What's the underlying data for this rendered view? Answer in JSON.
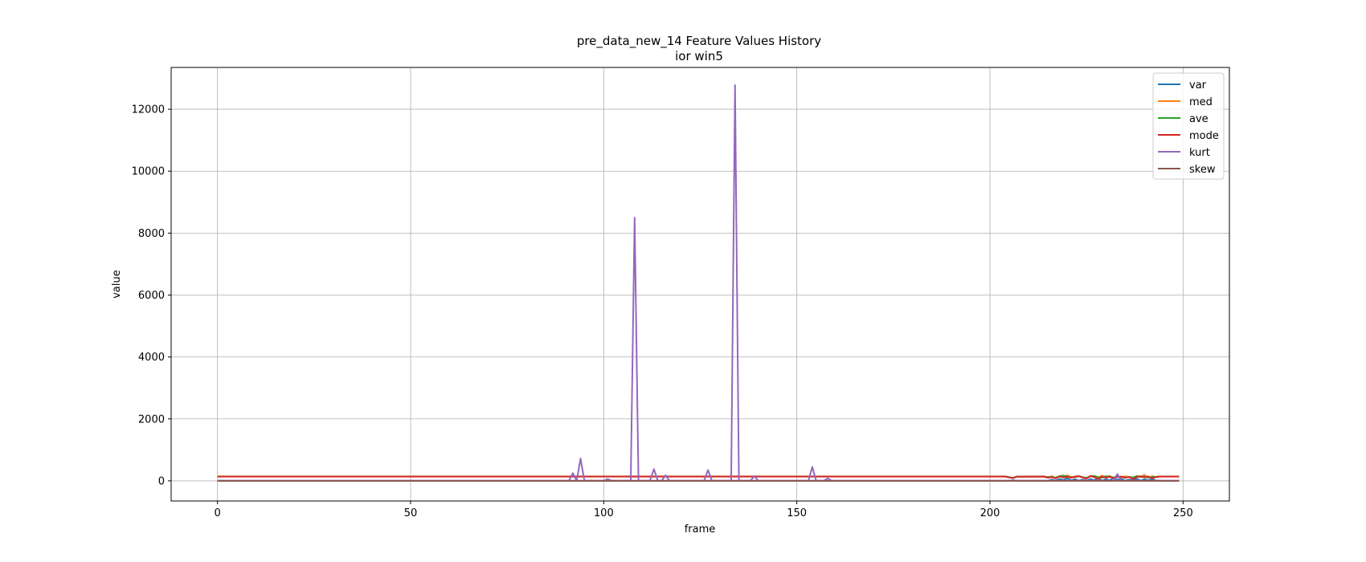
{
  "chart_data": {
    "type": "line",
    "title": "pre_data_new_14 Feature Values History",
    "subtitle": "ior win5",
    "xlabel": "frame",
    "ylabel": "value",
    "xlim": [
      -12,
      262
    ],
    "ylim": [
      -650,
      13350
    ],
    "xticks": [
      0,
      50,
      100,
      150,
      200,
      250
    ],
    "yticks": [
      0,
      2000,
      4000,
      6000,
      8000,
      10000,
      12000
    ],
    "grid": true,
    "legend_position": "top-right",
    "series": [
      {
        "name": "var",
        "color": "#1f77b4",
        "baseline": 2,
        "points": [
          [
            0,
            2
          ],
          [
            205,
            2
          ],
          [
            206,
            20
          ],
          [
            207,
            2
          ],
          [
            215,
            2
          ],
          [
            216,
            40
          ],
          [
            217,
            10
          ],
          [
            218,
            60
          ],
          [
            219,
            30
          ],
          [
            220,
            80
          ],
          [
            221,
            20
          ],
          [
            222,
            50
          ],
          [
            223,
            10
          ],
          [
            224,
            40
          ],
          [
            225,
            5
          ],
          [
            226,
            60
          ],
          [
            227,
            20
          ],
          [
            228,
            80
          ],
          [
            229,
            10
          ],
          [
            230,
            50
          ],
          [
            231,
            20
          ],
          [
            232,
            90
          ],
          [
            233,
            30
          ],
          [
            234,
            60
          ],
          [
            235,
            10
          ],
          [
            236,
            40
          ],
          [
            237,
            20
          ],
          [
            238,
            70
          ],
          [
            239,
            10
          ],
          [
            240,
            50
          ],
          [
            241,
            20
          ],
          [
            242,
            60
          ],
          [
            243,
            10
          ],
          [
            244,
            2
          ],
          [
            249,
            2
          ]
        ]
      },
      {
        "name": "med",
        "color": "#ff7f0e",
        "baseline": 145,
        "points": [
          [
            0,
            145
          ],
          [
            204,
            145
          ],
          [
            205,
            120
          ],
          [
            206,
            100
          ],
          [
            207,
            140
          ],
          [
            214,
            145
          ],
          [
            215,
            110
          ],
          [
            216,
            150
          ],
          [
            217,
            90
          ],
          [
            218,
            160
          ],
          [
            219,
            120
          ],
          [
            220,
            180
          ],
          [
            221,
            130
          ],
          [
            222,
            110
          ],
          [
            223,
            150
          ],
          [
            224,
            120
          ],
          [
            225,
            90
          ],
          [
            226,
            160
          ],
          [
            227,
            130
          ],
          [
            228,
            100
          ],
          [
            229,
            170
          ],
          [
            230,
            120
          ],
          [
            231,
            160
          ],
          [
            232,
            90
          ],
          [
            233,
            140
          ],
          [
            234,
            110
          ],
          [
            235,
            150
          ],
          [
            236,
            120
          ],
          [
            237,
            80
          ],
          [
            238,
            160
          ],
          [
            239,
            130
          ],
          [
            240,
            190
          ],
          [
            241,
            110
          ],
          [
            242,
            150
          ],
          [
            243,
            120
          ],
          [
            244,
            145
          ],
          [
            249,
            145
          ]
        ]
      },
      {
        "name": "ave",
        "color": "#2ca02c",
        "baseline": 140,
        "points": [
          [
            0,
            140
          ],
          [
            204,
            140
          ],
          [
            205,
            115
          ],
          [
            206,
            100
          ],
          [
            207,
            135
          ],
          [
            214,
            140
          ],
          [
            215,
            120
          ],
          [
            216,
            130
          ],
          [
            217,
            100
          ],
          [
            218,
            150
          ],
          [
            219,
            170
          ],
          [
            220,
            140
          ],
          [
            221,
            110
          ],
          [
            222,
            130
          ],
          [
            223,
            150
          ],
          [
            224,
            120
          ],
          [
            225,
            100
          ],
          [
            226,
            140
          ],
          [
            227,
            160
          ],
          [
            228,
            120
          ],
          [
            229,
            100
          ],
          [
            230,
            150
          ],
          [
            231,
            130
          ],
          [
            232,
            110
          ],
          [
            233,
            140
          ],
          [
            234,
            120
          ],
          [
            235,
            100
          ],
          [
            236,
            130
          ],
          [
            237,
            110
          ],
          [
            238,
            150
          ],
          [
            239,
            120
          ],
          [
            240,
            140
          ],
          [
            241,
            100
          ],
          [
            242,
            130
          ],
          [
            243,
            120
          ],
          [
            244,
            140
          ],
          [
            249,
            140
          ]
        ]
      },
      {
        "name": "mode",
        "color": "#d62728",
        "baseline": 138,
        "points": [
          [
            0,
            138
          ],
          [
            204,
            138
          ],
          [
            205,
            110
          ],
          [
            206,
            90
          ],
          [
            207,
            135
          ],
          [
            214,
            138
          ],
          [
            215,
            100
          ],
          [
            216,
            120
          ],
          [
            217,
            80
          ],
          [
            218,
            140
          ],
          [
            219,
            110
          ],
          [
            220,
            130
          ],
          [
            221,
            100
          ],
          [
            222,
            140
          ],
          [
            223,
            150
          ],
          [
            224,
            110
          ],
          [
            225,
            70
          ],
          [
            226,
            160
          ],
          [
            227,
            120
          ],
          [
            228,
            60
          ],
          [
            229,
            140
          ],
          [
            230,
            100
          ],
          [
            231,
            130
          ],
          [
            232,
            90
          ],
          [
            233,
            120
          ],
          [
            234,
            140
          ],
          [
            235,
            100
          ],
          [
            236,
            130
          ],
          [
            237,
            60
          ],
          [
            238,
            120
          ],
          [
            239,
            150
          ],
          [
            240,
            110
          ],
          [
            241,
            140
          ],
          [
            242,
            80
          ],
          [
            243,
            130
          ],
          [
            244,
            138
          ],
          [
            249,
            138
          ]
        ]
      },
      {
        "name": "kurt",
        "color": "#9467bd",
        "baseline": 5,
        "points": [
          [
            0,
            5
          ],
          [
            91,
            5
          ],
          [
            92,
            250
          ],
          [
            93,
            5
          ],
          [
            94,
            720
          ],
          [
            95,
            5
          ],
          [
            100,
            5
          ],
          [
            101,
            60
          ],
          [
            102,
            5
          ],
          [
            107,
            5
          ],
          [
            108,
            8500
          ],
          [
            109,
            5
          ],
          [
            112,
            5
          ],
          [
            113,
            380
          ],
          [
            114,
            5
          ],
          [
            115,
            5
          ],
          [
            116,
            180
          ],
          [
            117,
            5
          ],
          [
            126,
            5
          ],
          [
            127,
            350
          ],
          [
            128,
            5
          ],
          [
            133,
            5
          ],
          [
            134,
            12780
          ],
          [
            135,
            5
          ],
          [
            138,
            5
          ],
          [
            139,
            150
          ],
          [
            140,
            5
          ],
          [
            153,
            5
          ],
          [
            154,
            450
          ],
          [
            155,
            5
          ],
          [
            157,
            5
          ],
          [
            158,
            80
          ],
          [
            159,
            5
          ],
          [
            232,
            5
          ],
          [
            233,
            220
          ],
          [
            234,
            5
          ],
          [
            249,
            5
          ]
        ]
      },
      {
        "name": "skew",
        "color": "#8c564b",
        "baseline": 1,
        "points": [
          [
            0,
            1
          ],
          [
            249,
            1
          ]
        ]
      }
    ]
  }
}
